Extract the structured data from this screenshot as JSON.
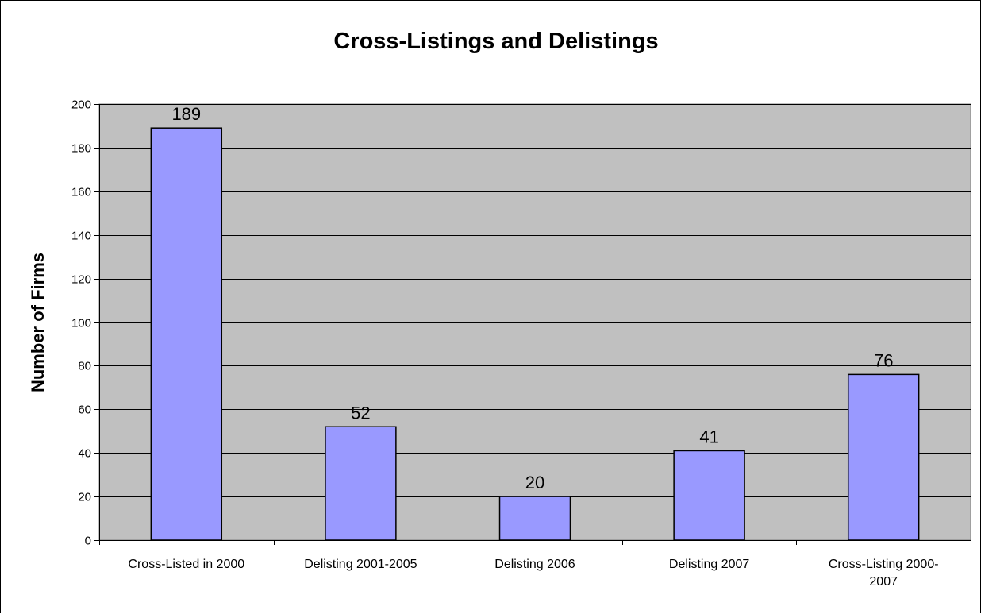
{
  "chart_data": {
    "type": "bar",
    "title": "Cross-Listings and Delistings",
    "xlabel": "",
    "ylabel": "Number of Firms",
    "categories": [
      "Cross-Listed in 2000",
      "Delisting 2001-2005",
      "Delisting 2006",
      "Delisting 2007",
      "Cross-Listing 2000-2007"
    ],
    "category_lines": [
      [
        "Cross-Listed in 2000"
      ],
      [
        "Delisting 2001-2005"
      ],
      [
        "Delisting 2006"
      ],
      [
        "Delisting 2007"
      ],
      [
        "Cross-Listing 2000-",
        "2007"
      ]
    ],
    "values": [
      189,
      52,
      20,
      41,
      76
    ],
    "ylim": [
      0,
      200
    ],
    "yticks": [
      0,
      20,
      40,
      60,
      80,
      100,
      120,
      140,
      160,
      180,
      200
    ],
    "grid": true,
    "legend": "none",
    "colors": {
      "bar_fill": "#9999FF",
      "bar_stroke": "#000000",
      "plot_background": "#C0C0C0",
      "grid": "#000000"
    }
  }
}
